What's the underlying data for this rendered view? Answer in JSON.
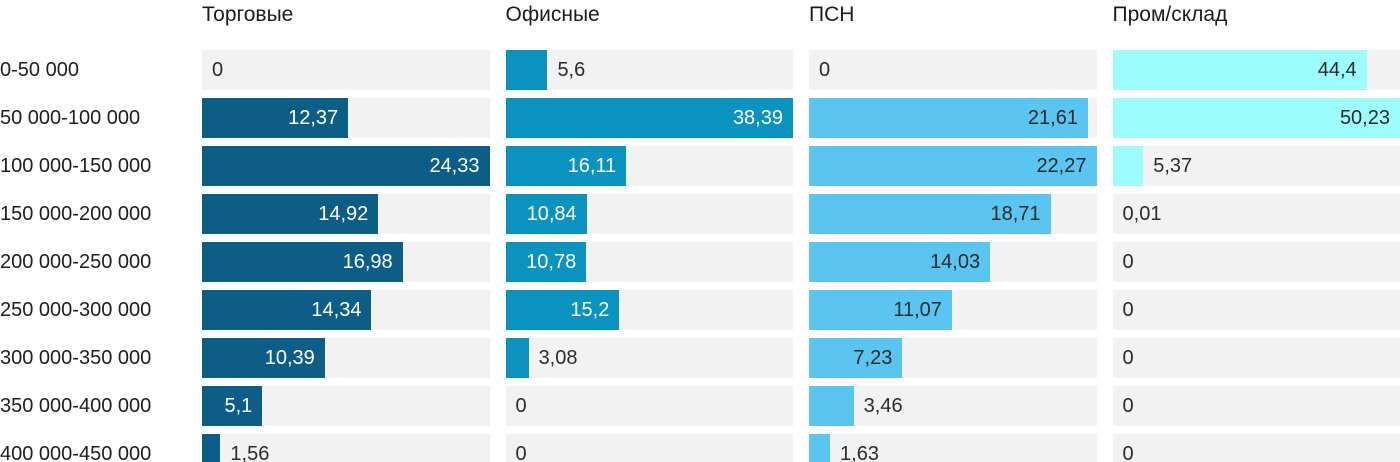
{
  "chart_data": {
    "type": "bar",
    "orientation": "horizontal",
    "layout": "small-multiples-columns",
    "grid": false,
    "legend": "column-headers",
    "value_scale": "per-series-max",
    "track_color": "#f2f2f2",
    "row_label_color": "#1e1e1e",
    "categories": [
      "0-50 000",
      "50 000-100 000",
      "100 000-150 000",
      "150 000-200 000",
      "200 000-250 000",
      "250 000-300 000",
      "300 000-350 000",
      "350 000-400 000",
      "400 000-450 000"
    ],
    "series": [
      {
        "name": "Торговые",
        "color": "#0d5e86",
        "inside_label_color": "#ffffff",
        "axis_max": 24.33,
        "values": [
          0,
          12.37,
          24.33,
          14.92,
          16.98,
          14.34,
          10.39,
          5.1,
          1.56
        ],
        "labels": [
          "0",
          "12,37",
          "24,33",
          "14,92",
          "16,98",
          "14,34",
          "10,39",
          "5,1",
          "1,56"
        ]
      },
      {
        "name": "Офисные",
        "color": "#0a93bf",
        "inside_label_color": "#ffffff",
        "axis_max": 38.39,
        "values": [
          5.6,
          38.39,
          16.11,
          10.84,
          10.78,
          15.2,
          3.08,
          0,
          0
        ],
        "labels": [
          "5,6",
          "38,39",
          "16,11",
          "10,84",
          "10,78",
          "15,2",
          "3,08",
          "0",
          "0"
        ]
      },
      {
        "name": "ПСН",
        "color": "#5bc5f1",
        "inside_label_color": "#2b2b2b",
        "axis_max": 22.27,
        "values": [
          0,
          21.61,
          22.27,
          18.71,
          14.03,
          11.07,
          7.23,
          3.46,
          1.63
        ],
        "labels": [
          "0",
          "21,61",
          "22,27",
          "18,71",
          "14,03",
          "11,07",
          "7,23",
          "3,46",
          "1,63"
        ]
      },
      {
        "name": "Пром/склад",
        "color": "#9dfdfc",
        "inside_label_color": "#2b2b2b",
        "axis_max": 50.23,
        "values": [
          44.4,
          50.23,
          5.37,
          0.01,
          0,
          0,
          0,
          0,
          0
        ],
        "labels": [
          "44,4",
          "50,23",
          "5,37",
          "0,01",
          "0",
          "0",
          "0",
          "0",
          "0"
        ]
      }
    ]
  }
}
